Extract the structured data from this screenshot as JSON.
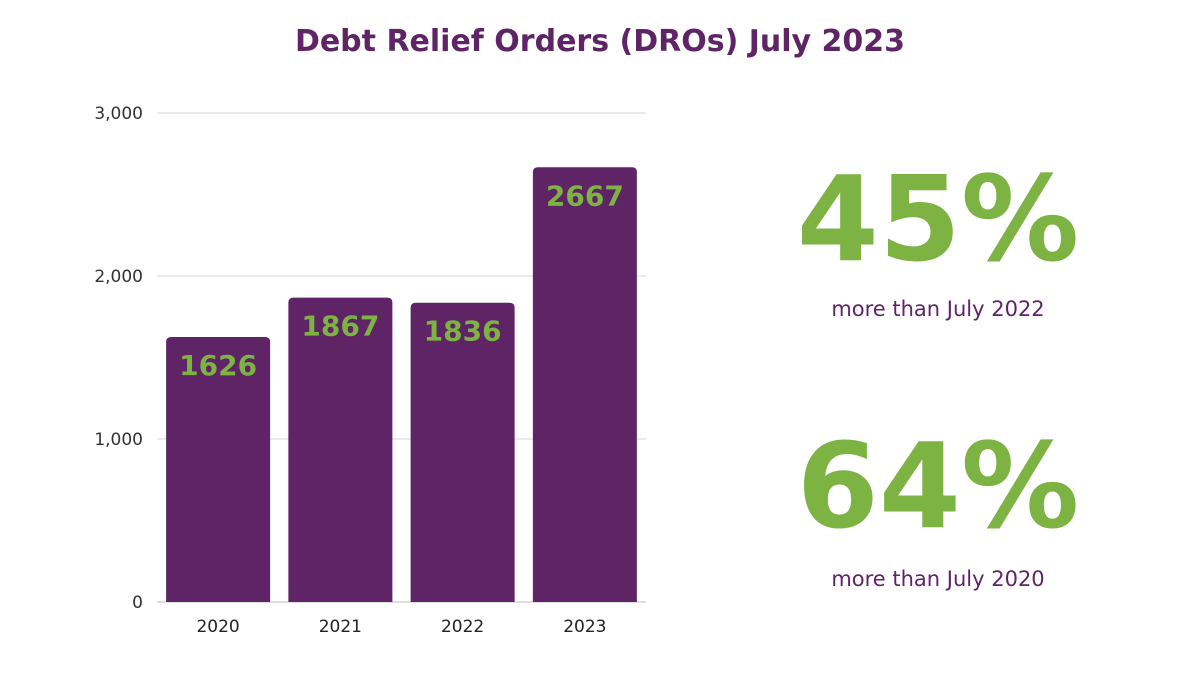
{
  "chart_data": {
    "type": "bar",
    "title": "Debt Relief Orders (DROs) July 2023",
    "categories": [
      "2020",
      "2021",
      "2022",
      "2023"
    ],
    "values": [
      1626,
      1867,
      1836,
      2667
    ],
    "data_labels": [
      "1626",
      "1867",
      "1836",
      "2667"
    ],
    "y_ticks": [
      {
        "value": 0,
        "label": "0"
      },
      {
        "value": 1000,
        "label": "1,000"
      },
      {
        "value": 2000,
        "label": "2,000"
      },
      {
        "value": 3000,
        "label": "3,000"
      }
    ],
    "ylim": [
      0,
      3000
    ],
    "xlabel": "",
    "ylabel": "",
    "grid": true,
    "bar_color": "#5e2466",
    "label_color": "#7cb342"
  },
  "stats": [
    {
      "value": "45%",
      "caption": "more than July 2022"
    },
    {
      "value": "64%",
      "caption": "more than July 2020"
    }
  ]
}
